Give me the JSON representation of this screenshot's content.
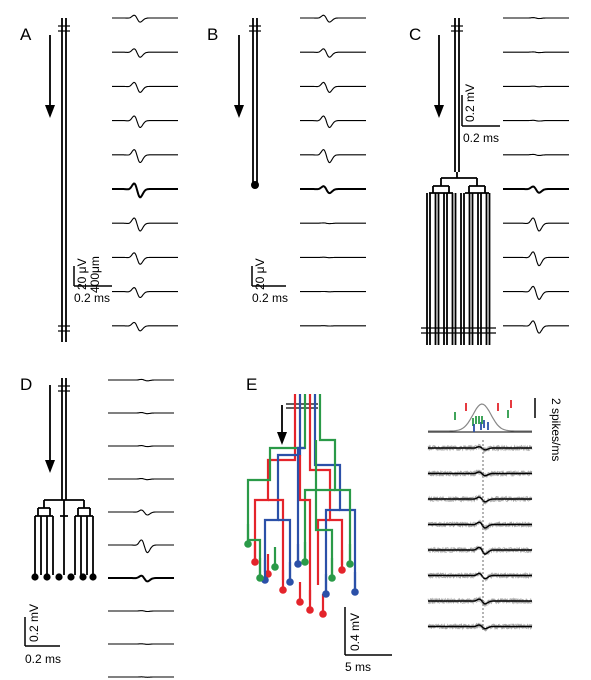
{
  "panels": [
    {
      "id": "A",
      "label": "A",
      "scale_y": "20 μV",
      "scale_len": "400μm",
      "scale_x": "0.2 ms"
    },
    {
      "id": "B",
      "label": "B",
      "scale_y": "20 μV",
      "scale_x": "0.2 ms"
    },
    {
      "id": "C",
      "label": "C",
      "scale_y": "0.2 mV",
      "scale_x": "0.2 ms"
    },
    {
      "id": "D",
      "label": "D",
      "scale_y": "0.2 mV",
      "scale_x": "0.2 ms"
    },
    {
      "id": "E",
      "label": "E",
      "scale_y": "0.4 mV",
      "scale_x": "5 ms",
      "rate_scale": "2 spikes/ms"
    }
  ],
  "colors": {
    "red": "#e4242b",
    "green": "#2a9a48",
    "blue": "#2b50a8",
    "gray": "#9e9e9e",
    "curve": "#888888"
  },
  "traces": {
    "A": [
      0.45,
      0.55,
      0.65,
      0.75,
      0.85,
      0.9,
      0.85,
      0.75,
      0.65,
      0.55
    ],
    "B": [
      0.45,
      0.55,
      0.65,
      0.75,
      0.85,
      0.45,
      0.05,
      0.03,
      0.02,
      0.02
    ],
    "C": [
      0.06,
      0.05,
      0.04,
      0.05,
      0.07,
      0.4,
      0.85,
      0.9,
      0.85,
      0.8
    ],
    "D": [
      0.1,
      0.08,
      0.07,
      0.08,
      0.35,
      0.9,
      0.4,
      0.06,
      0.04,
      0.03
    ],
    "E": [
      0.3,
      0.35,
      0.45,
      0.55,
      0.65,
      0.5,
      0.45,
      0.35
    ]
  }
}
